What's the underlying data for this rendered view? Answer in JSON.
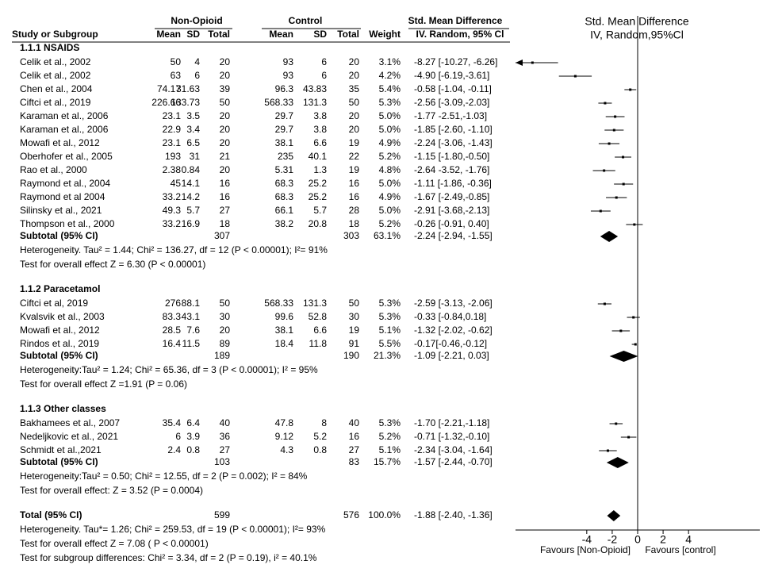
{
  "chart_data": {
    "type": "forest",
    "header": {
      "group1": "Non-Opioid",
      "group2": "Control",
      "effect": "Std. Mean Difference",
      "columns": [
        "Study or Subgroup",
        "Mean",
        "SD",
        "Total",
        "Mean",
        "SD",
        "Total",
        "Weight",
        "IV. Random, 95% Cl"
      ],
      "plot_title": "Std. Mean Difference",
      "plot_subtitle": "IV, Random,95%Cl"
    },
    "subgroups": [
      {
        "title": "1.1.1 NSAIDS",
        "studies": [
          {
            "name": "Celik et al., 2002",
            "cells": [
              "50",
              "4",
              "20",
              "93",
              "6",
              "20",
              "3.1%"
            ],
            "estimate": -8.27,
            "lower": -10.27,
            "upper": -6.26,
            "label": "-8.27 [-10.27, -6.26]"
          },
          {
            "name": "Celik et al., 2002",
            "cells": [
              "63",
              "6",
              "20",
              "93",
              "6",
              "20",
              "4.2%"
            ],
            "estimate": -4.9,
            "lower": -6.19,
            "upper": -3.61,
            "label": "-4.90 [-6.19,-3.61]"
          },
          {
            "name": "Chen et al., 2004",
            "cells": [
              "74.17",
              "31.63",
              "39",
              "96.3",
              "43.83",
              "35",
              "5.4%"
            ],
            "estimate": -0.58,
            "lower": -1.04,
            "upper": -0.11,
            "label": "-0.58 [-1.04, -0.11]"
          },
          {
            "name": "Ciftci et al., 2019",
            "cells": [
              "226.66",
              "133.73",
              "50",
              "568.33",
              "131.3",
              "50",
              "5.3%"
            ],
            "estimate": -2.56,
            "lower": -3.09,
            "upper": -2.03,
            "label": "-2.56 [-3.09,-2.03]"
          },
          {
            "name": "Karaman et al., 2006",
            "cells": [
              "23.1",
              "3.5",
              "20",
              "29.7",
              "3.8",
              "20",
              "5.0%"
            ],
            "estimate": -1.77,
            "lower": -2.51,
            "upper": -1.03,
            "label": "-1.77  -2.51,-1.03]"
          },
          {
            "name": "Karaman et al., 2006",
            "cells": [
              "22.9",
              "3.4",
              "20",
              "29.7",
              "3.8",
              "20",
              "5.0%"
            ],
            "estimate": -1.85,
            "lower": -2.6,
            "upper": -1.1,
            "label": "-1.85 [-2.60, -1.10]"
          },
          {
            "name": "Mowafi et al., 2012",
            "cells": [
              "23.1",
              "6.5",
              "20",
              "38.1",
              "6.6",
              "19",
              "4.9%"
            ],
            "estimate": -2.24,
            "lower": -3.06,
            "upper": -1.43,
            "label": "-2.24 [-3.06, -1.43]"
          },
          {
            "name": "Oberhofer et al., 2005",
            "cells": [
              "193",
              "31",
              "21",
              "235",
              "40.1",
              "22",
              "5.2%"
            ],
            "estimate": -1.15,
            "lower": -1.8,
            "upper": -0.5,
            "label": "-1.15 [-1.80,-0.50]"
          },
          {
            "name": "Rao et al., 2000",
            "cells": [
              "2.38",
              "0.84",
              "20",
              "5.31",
              "1.3",
              "19",
              "4.8%"
            ],
            "estimate": -2.64,
            "lower": -3.52,
            "upper": -1.76,
            "label": "-2.64 -3.52, -1.76]"
          },
          {
            "name": "Raymond et al., 2004",
            "cells": [
              "45",
              "14.1",
              "16",
              "68.3",
              "25.2",
              "16",
              "5.0%"
            ],
            "estimate": -1.11,
            "lower": -1.86,
            "upper": -0.36,
            "label": "-1.11 [-1.86, -0.36]"
          },
          {
            "name": "Raymond et al 2004",
            "cells": [
              "33.2",
              "14.2",
              "16",
              "68.3",
              "25.2",
              "16",
              "4.9%"
            ],
            "estimate": -1.67,
            "lower": -2.49,
            "upper": -0.85,
            "label": "-1.67 [-2.49,-0.85]"
          },
          {
            "name": "Silinsky et al., 2021",
            "cells": [
              "49.3",
              "5.7",
              "27",
              "66.1",
              "5.7",
              "28",
              "5.0%"
            ],
            "estimate": -2.91,
            "lower": -3.68,
            "upper": -2.13,
            "label": "-2.91 [-3.68,-2.13]"
          },
          {
            "name": "Thompson et al., 2000",
            "cells": [
              "33.2",
              "16.9",
              "18",
              "38.2",
              "20.8",
              "18",
              "5.2%"
            ],
            "estimate": -0.26,
            "lower": -0.91,
            "upper": 0.4,
            "label": "-0.26 [-0.91, 0.40]"
          }
        ],
        "subtotal": {
          "name": "Subtotal (95% CI)",
          "total1": 307,
          "total2": 303,
          "weight": "63.1%",
          "estimate": -2.24,
          "lower": -2.94,
          "upper": -1.55,
          "label": "-2.24 [-2.94, -1.55]"
        },
        "notes": [
          "Heterogeneity. Tau² = 1.44; Chi² = 136.27, df = 12 (P < 0.00001); I²= 91%",
          "Test for overall effect Z = 6.30 (P < 0.00001)"
        ]
      },
      {
        "title": "1.1.2 Paracetamol",
        "studies": [
          {
            "name": "Ciftci et al, 2019",
            "cells": [
              "276",
              "88.1",
              "50",
              "568.33",
              "131.3",
              "50",
              "5.3%"
            ],
            "estimate": -2.59,
            "lower": -3.13,
            "upper": -2.06,
            "label": "-2.59 [-3.13, -2.06]"
          },
          {
            "name": "Kvalsvik et al., 2003",
            "cells": [
              "83.3",
              "43.1",
              "30",
              "99.6",
              "52.8",
              "30",
              "5.3%"
            ],
            "estimate": -0.33,
            "lower": -0.84,
            "upper": 0.18,
            "label": "-0.33 [-0.84,0.18]"
          },
          {
            "name": "Mowafi et al., 2012",
            "cells": [
              "28.5",
              "7.6",
              "20",
              "38.1",
              "6.6",
              "19",
              "5.1%"
            ],
            "estimate": -1.32,
            "lower": -2.02,
            "upper": -0.62,
            "label": "-1.32 [-2.02, -0.62]"
          },
          {
            "name": "Rindos et al., 2019",
            "cells": [
              "16.4",
              "11.5",
              "89",
              "18.4",
              "11.8",
              "91",
              "5.5%"
            ],
            "estimate": -0.17,
            "lower": -0.46,
            "upper": -0.12,
            "label": "-0.17[-0.46,-0.12]"
          }
        ],
        "subtotal": {
          "name": "Subtotal (95% CI)",
          "total1": 189,
          "total2": 190,
          "weight": "21.3%",
          "estimate": -1.09,
          "lower": -2.21,
          "upper": 0.03,
          "label": "-1.09 [-2.21, 0.03]"
        },
        "notes": [
          "Heterogeneity:Tau² = 1.24; Chi² = 65.36, df = 3 (P < 0.00001); I² = 95%",
          "Test  for overall effect Z =1.91  (P = 0.06)"
        ]
      },
      {
        "title": "1.1.3 Other classes",
        "studies": [
          {
            "name": "Bakhamees et al., 2007",
            "cells": [
              "35.4",
              "6.4",
              "40",
              "47.8",
              "8",
              "40",
              "5.3%"
            ],
            "estimate": -1.7,
            "lower": -2.21,
            "upper": -1.18,
            "label": "-1.70 [-2.21,-1.18]"
          },
          {
            "name": "Nedeljkovic et al., 2021",
            "cells": [
              "6",
              "3.9",
              "36",
              "9.12",
              "5.2",
              "16",
              "5.2%"
            ],
            "estimate": -0.71,
            "lower": -1.32,
            "upper": -0.1,
            "label": "-0.71 [-1.32,-0.10]"
          },
          {
            "name": "Schmidt et al.,2021",
            "cells": [
              "2.4",
              "0.8",
              "27",
              "4.3",
              "0.8",
              "27",
              "5.1%"
            ],
            "estimate": -2.34,
            "lower": -3.04,
            "upper": -1.64,
            "label": "-2.34 [-3.04, -1.64]"
          }
        ],
        "subtotal": {
          "name": "Subtotal (95% CI)",
          "total1": 103,
          "total2": 83,
          "weight": "15.7%",
          "estimate": -1.57,
          "lower": -2.44,
          "upper": -0.7,
          "label": "-1.57 [-2.44, -0.70]"
        },
        "notes": [
          "Heterogeneity:Tau² = 0.50; Chi² = 12.55, df = 2 (P = 0.002); I² = 84%",
          "Test for overall effect: Z = 3.52 (P = 0.0004)"
        ]
      }
    ],
    "total": {
      "name": "Total (95% CI)",
      "total1": 599,
      "total2": 576,
      "weight": "100.0%",
      "estimate": -1.88,
      "lower": -2.4,
      "upper": -1.36,
      "label": "-1.88 [-2.40, -1.36]",
      "notes": [
        "Heterogeneity. Tau*= 1.26; Chi² = 259.53, df = 19 (P < 0.00001); I²= 93%",
        "Test for overall effect Z = 7.08 ( P < 0.00001)",
        "Test for subgroup differences:  Chi² = 3.34, df = 2 (P = 0.19), i² = 40.1%"
      ]
    },
    "xlim": [
      -9.6,
      9.6
    ],
    "xticks": [
      -4,
      -2,
      0,
      2,
      4
    ],
    "xlabel_left": "Favours [Non-Opioid]",
    "xlabel_right": "Favours [control]",
    "color": "#000000"
  }
}
